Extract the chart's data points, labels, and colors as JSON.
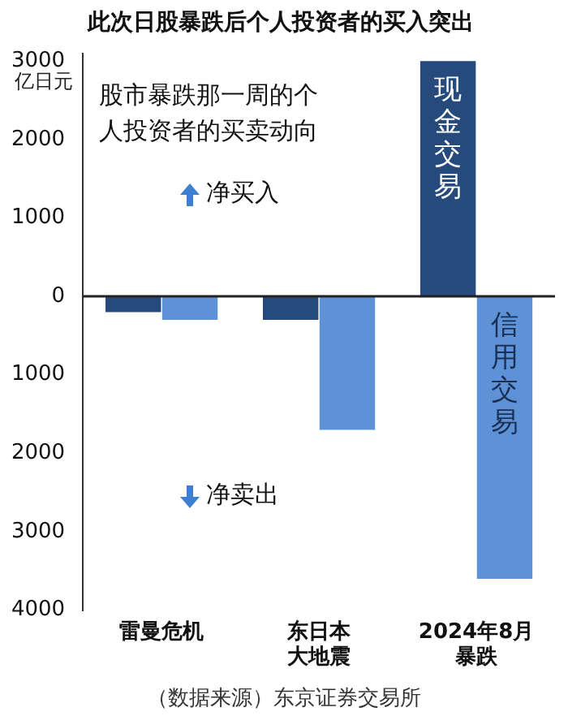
{
  "chart_data": {
    "type": "bar",
    "title": "此次日股暴跌后个人投资者的买入突出",
    "ylabel": "亿日元",
    "categories": [
      "雷曼危机",
      "东日本大地震",
      "2024年8月暴跌"
    ],
    "series": [
      {
        "name": "现金交易",
        "color": "#264a7c",
        "values": [
          -200,
          -300,
          3000
        ]
      },
      {
        "name": "信用交易",
        "color": "#5d92d6",
        "values": [
          -300,
          -1700,
          -3600
        ]
      }
    ],
    "ylim": [
      -4000,
      3100
    ],
    "yticks": [
      3000,
      2000,
      1000,
      0,
      {
        "value": -1000,
        "label": "1000"
      },
      {
        "value": -2000,
        "label": "2000"
      },
      {
        "value": -3000,
        "label": "3000"
      },
      {
        "value": -4000,
        "label": "4000"
      }
    ],
    "grid": false,
    "legend": false,
    "ref_lines": [
      {
        "axis": "y",
        "value": 0,
        "color": "#222222"
      }
    ],
    "annotations": [
      "股市暴跌那一周的个人投资者的买卖动向",
      "净买入",
      "净卖出",
      "（数据来源）东京证券交易所"
    ]
  }
}
